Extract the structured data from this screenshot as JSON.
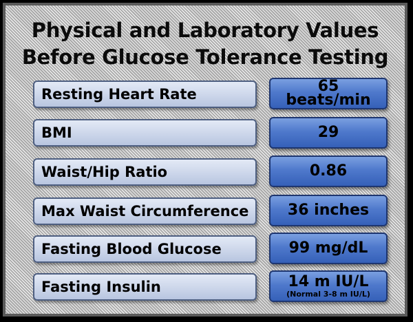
{
  "title": {
    "line1": "Physical and Laboratory Values",
    "line2": "Before Glucose Tolerance Testing"
  },
  "rows": [
    {
      "label": "Resting Heart Rate",
      "value_line1": "65",
      "value_line2": "beats/min"
    },
    {
      "label": "BMI",
      "value": "29"
    },
    {
      "label": "Waist/Hip Ratio",
      "value": "0.86"
    },
    {
      "label": "Max Waist Circumference",
      "value": "36 inches"
    },
    {
      "label": "Fasting Blood Glucose",
      "value": "99 mg/dL"
    },
    {
      "label": "Fasting Insulin",
      "value": "14 m IU/L",
      "note": "(Normal 3-8 m IU/L)"
    }
  ],
  "colors": {
    "background": "#000000",
    "panel": "#bdbdbd",
    "label_box": "#ccd6ea",
    "value_box": "#4f79cc",
    "text": "#000000"
  }
}
